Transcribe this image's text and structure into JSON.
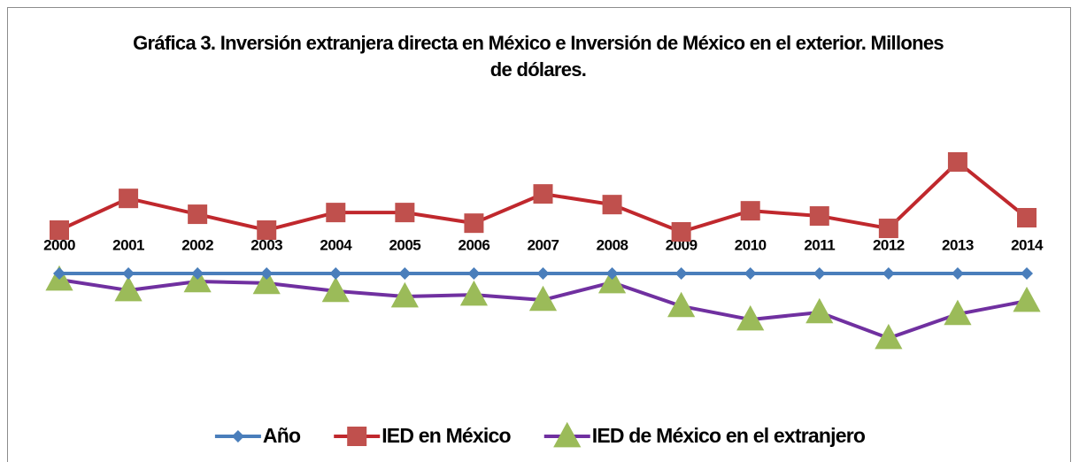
{
  "chart_data": {
    "type": "line",
    "title": "Gráfica 3.   Inversión extranjera directa en México e Inversión de México en el exterior. Millones de dólares.",
    "categories": [
      "2000",
      "2001",
      "2002",
      "2003",
      "2004",
      "2005",
      "2006",
      "2007",
      "2008",
      "2009",
      "2010",
      "2011",
      "2012",
      "2013",
      "2014"
    ],
    "series": [
      {
        "name": "Año",
        "color": "#4a7ebb",
        "marker": "diamond",
        "marker_color": "#4a7ebb",
        "values": [
          0,
          0,
          0,
          0,
          0,
          0,
          0,
          0,
          0,
          0,
          0,
          0,
          0,
          0,
          0
        ]
      },
      {
        "name": "IED en México",
        "color": "#c0282d",
        "marker": "square",
        "marker_color": "#c0504d",
        "values": [
          17500,
          30300,
          23900,
          17500,
          24600,
          24600,
          20300,
          32100,
          27800,
          16800,
          25300,
          23200,
          18200,
          45000,
          22500
        ]
      },
      {
        "name": "IED de México en el extranjero",
        "color": "#7030a0",
        "marker": "triangle",
        "marker_color": "#9bbb59",
        "values": [
          -2500,
          -6800,
          -3200,
          -3900,
          -7100,
          -9300,
          -8600,
          -10700,
          -3600,
          -13200,
          -18600,
          -15700,
          -26100,
          -16400,
          -11100
        ]
      }
    ],
    "ylim": [
      -35000,
      60000
    ],
    "legend": "bottom"
  }
}
